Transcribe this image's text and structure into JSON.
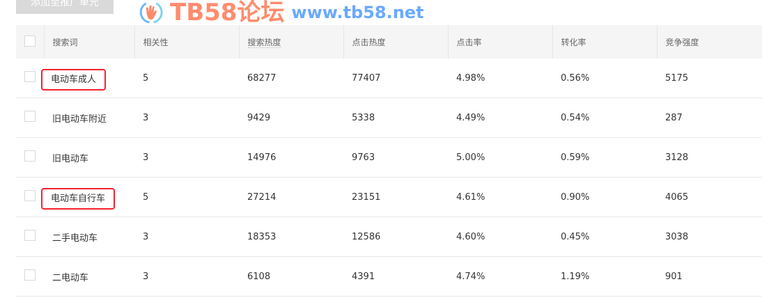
{
  "toolbar": {
    "add_label": "添加至推广单元"
  },
  "table": {
    "headers": [
      "搜索词",
      "相关性",
      "搜索热度",
      "点击热度",
      "点击率",
      "转化率",
      "竞争强度"
    ],
    "rows": [
      {
        "keyword": "电动车成人",
        "relevance": "5",
        "search_heat": "68277",
        "click_heat": "77407",
        "ctr": "4.98%",
        "cvr": "0.56%",
        "competition": "5175",
        "highlighted": true
      },
      {
        "keyword": "旧电动车附近",
        "relevance": "3",
        "search_heat": "9429",
        "click_heat": "5338",
        "ctr": "4.49%",
        "cvr": "0.54%",
        "competition": "287",
        "highlighted": false
      },
      {
        "keyword": "旧电动车",
        "relevance": "3",
        "search_heat": "14976",
        "click_heat": "9763",
        "ctr": "5.00%",
        "cvr": "0.59%",
        "competition": "3128",
        "highlighted": false
      },
      {
        "keyword": "电动车自行车",
        "relevance": "5",
        "search_heat": "27214",
        "click_heat": "23151",
        "ctr": "4.61%",
        "cvr": "0.90%",
        "competition": "4065",
        "highlighted": true
      },
      {
        "keyword": "二手电动车",
        "relevance": "3",
        "search_heat": "18353",
        "click_heat": "12586",
        "ctr": "4.60%",
        "cvr": "0.45%",
        "competition": "3038",
        "highlighted": false
      },
      {
        "keyword": "二电动车",
        "relevance": "3",
        "search_heat": "6108",
        "click_heat": "4391",
        "ctr": "4.74%",
        "cvr": "1.19%",
        "competition": "901",
        "highlighted": false
      }
    ]
  },
  "watermark": {
    "title": "TB58论坛",
    "url": "www.tb58.net"
  },
  "colors": {
    "highlight": "#f5222d",
    "header_bg": "#f5f5f5"
  }
}
